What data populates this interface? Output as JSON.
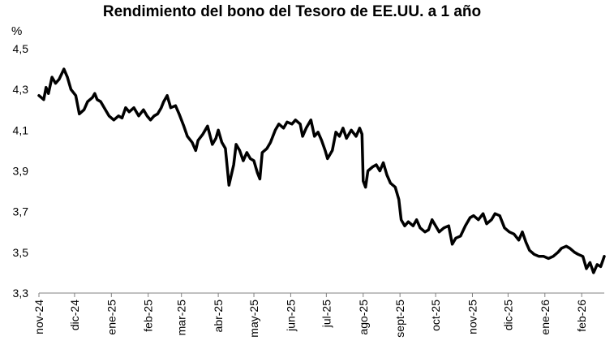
{
  "chart_data": {
    "type": "line",
    "title": "Rendimiento del bono del Tesoro de EE.UU. a 1 año",
    "ylabel": "%",
    "xlabel": "",
    "ylim": [
      3.3,
      4.5
    ],
    "yticks": [
      "4,5",
      "4,3",
      "4,1",
      "3,9",
      "3,7",
      "3,5",
      "3,3"
    ],
    "ytick_values": [
      4.5,
      4.3,
      4.1,
      3.9,
      3.7,
      3.5,
      3.3
    ],
    "xticks": [
      "nov-24",
      "dic-24",
      "ene-25",
      "feb-25",
      "mar-25",
      "abr-25",
      "may-25",
      "jun-25",
      "jul-25",
      "ago-25",
      "sept-25",
      "oct-25",
      "nov-25",
      "dic-25",
      "ene-26",
      "feb-26"
    ],
    "x_start": "2024-11-01",
    "x_end": "2026-02-20",
    "grid": false,
    "line_color": "#000000",
    "series": [
      {
        "points": [
          [
            "2024-11-01",
            4.27
          ],
          [
            "2024-11-05",
            4.25
          ],
          [
            "2024-11-07",
            4.31
          ],
          [
            "2024-11-09",
            4.28
          ],
          [
            "2024-11-12",
            4.36
          ],
          [
            "2024-11-15",
            4.33
          ],
          [
            "2024-11-18",
            4.35
          ],
          [
            "2024-11-22",
            4.4
          ],
          [
            "2024-11-25",
            4.36
          ],
          [
            "2024-11-28",
            4.3
          ],
          [
            "2024-12-02",
            4.27
          ],
          [
            "2024-12-05",
            4.18
          ],
          [
            "2024-12-09",
            4.2
          ],
          [
            "2024-12-12",
            4.24
          ],
          [
            "2024-12-16",
            4.26
          ],
          [
            "2024-12-18",
            4.28
          ],
          [
            "2024-12-20",
            4.25
          ],
          [
            "2024-12-23",
            4.24
          ],
          [
            "2024-12-26",
            4.21
          ],
          [
            "2024-12-30",
            4.17
          ],
          [
            "2025-01-03",
            4.15
          ],
          [
            "2025-01-07",
            4.17
          ],
          [
            "2025-01-10",
            4.16
          ],
          [
            "2025-01-13",
            4.21
          ],
          [
            "2025-01-16",
            4.19
          ],
          [
            "2025-01-20",
            4.21
          ],
          [
            "2025-01-24",
            4.17
          ],
          [
            "2025-01-28",
            4.2
          ],
          [
            "2025-01-31",
            4.17
          ],
          [
            "2025-02-03",
            4.15
          ],
          [
            "2025-02-06",
            4.17
          ],
          [
            "2025-02-09",
            4.18
          ],
          [
            "2025-02-12",
            4.21
          ],
          [
            "2025-02-14",
            4.24
          ],
          [
            "2025-02-17",
            4.27
          ],
          [
            "2025-02-20",
            4.21
          ],
          [
            "2025-02-24",
            4.22
          ],
          [
            "2025-02-27",
            4.18
          ],
          [
            "2025-03-03",
            4.12
          ],
          [
            "2025-03-06",
            4.07
          ],
          [
            "2025-03-10",
            4.04
          ],
          [
            "2025-03-13",
            4.0
          ],
          [
            "2025-03-15",
            4.05
          ],
          [
            "2025-03-19",
            4.08
          ],
          [
            "2025-03-23",
            4.12
          ],
          [
            "2025-03-27",
            4.03
          ],
          [
            "2025-03-30",
            4.06
          ],
          [
            "2025-04-01",
            4.1
          ],
          [
            "2025-04-04",
            4.04
          ],
          [
            "2025-04-07",
            4.01
          ],
          [
            "2025-04-10",
            3.83
          ],
          [
            "2025-04-14",
            3.93
          ],
          [
            "2025-04-16",
            4.03
          ],
          [
            "2025-04-19",
            4.0
          ],
          [
            "2025-04-22",
            3.95
          ],
          [
            "2025-04-25",
            3.99
          ],
          [
            "2025-04-28",
            3.96
          ],
          [
            "2025-05-01",
            3.95
          ],
          [
            "2025-05-04",
            3.89
          ],
          [
            "2025-05-06",
            3.86
          ],
          [
            "2025-05-08",
            3.99
          ],
          [
            "2025-05-12",
            4.01
          ],
          [
            "2025-05-15",
            4.04
          ],
          [
            "2025-05-19",
            4.1
          ],
          [
            "2025-05-22",
            4.13
          ],
          [
            "2025-05-26",
            4.11
          ],
          [
            "2025-05-29",
            4.14
          ],
          [
            "2025-06-02",
            4.13
          ],
          [
            "2025-06-05",
            4.15
          ],
          [
            "2025-06-09",
            4.13
          ],
          [
            "2025-06-11",
            4.07
          ],
          [
            "2025-06-14",
            4.11
          ],
          [
            "2025-06-18",
            4.15
          ],
          [
            "2025-06-21",
            4.07
          ],
          [
            "2025-06-24",
            4.09
          ],
          [
            "2025-06-27",
            4.05
          ],
          [
            "2025-06-30",
            4.0
          ],
          [
            "2025-07-02",
            3.96
          ],
          [
            "2025-07-06",
            4.0
          ],
          [
            "2025-07-09",
            4.09
          ],
          [
            "2025-07-12",
            4.07
          ],
          [
            "2025-07-15",
            4.11
          ],
          [
            "2025-07-18",
            4.06
          ],
          [
            "2025-07-22",
            4.1
          ],
          [
            "2025-07-26",
            4.07
          ],
          [
            "2025-07-29",
            4.11
          ],
          [
            "2025-07-31",
            4.08
          ],
          [
            "2025-08-01",
            3.85
          ],
          [
            "2025-08-03",
            3.82
          ],
          [
            "2025-08-05",
            3.9
          ],
          [
            "2025-08-09",
            3.92
          ],
          [
            "2025-08-12",
            3.93
          ],
          [
            "2025-08-15",
            3.9
          ],
          [
            "2025-08-18",
            3.94
          ],
          [
            "2025-08-21",
            3.88
          ],
          [
            "2025-08-24",
            3.84
          ],
          [
            "2025-08-28",
            3.82
          ],
          [
            "2025-08-31",
            3.76
          ],
          [
            "2025-09-02",
            3.66
          ],
          [
            "2025-09-05",
            3.63
          ],
          [
            "2025-09-08",
            3.65
          ],
          [
            "2025-09-12",
            3.63
          ],
          [
            "2025-09-15",
            3.66
          ],
          [
            "2025-09-18",
            3.62
          ],
          [
            "2025-09-22",
            3.6
          ],
          [
            "2025-09-25",
            3.61
          ],
          [
            "2025-09-28",
            3.66
          ],
          [
            "2025-10-01",
            3.63
          ],
          [
            "2025-10-04",
            3.6
          ],
          [
            "2025-10-08",
            3.62
          ],
          [
            "2025-10-12",
            3.63
          ],
          [
            "2025-10-15",
            3.54
          ],
          [
            "2025-10-18",
            3.57
          ],
          [
            "2025-10-22",
            3.58
          ],
          [
            "2025-10-26",
            3.63
          ],
          [
            "2025-10-30",
            3.67
          ],
          [
            "2025-11-02",
            3.68
          ],
          [
            "2025-11-06",
            3.66
          ],
          [
            "2025-11-10",
            3.69
          ],
          [
            "2025-11-13",
            3.64
          ],
          [
            "2025-11-17",
            3.66
          ],
          [
            "2025-11-20",
            3.69
          ],
          [
            "2025-11-24",
            3.68
          ],
          [
            "2025-11-28",
            3.62
          ],
          [
            "2025-12-02",
            3.6
          ],
          [
            "2025-12-06",
            3.59
          ],
          [
            "2025-12-10",
            3.56
          ],
          [
            "2025-12-13",
            3.6
          ],
          [
            "2025-12-16",
            3.55
          ],
          [
            "2025-12-19",
            3.51
          ],
          [
            "2025-12-23",
            3.49
          ],
          [
            "2025-12-27",
            3.48
          ],
          [
            "2025-12-31",
            3.48
          ],
          [
            "2026-01-04",
            3.47
          ],
          [
            "2026-01-08",
            3.48
          ],
          [
            "2026-01-12",
            3.5
          ],
          [
            "2026-01-15",
            3.52
          ],
          [
            "2026-01-19",
            3.53
          ],
          [
            "2026-01-22",
            3.52
          ],
          [
            "2026-01-26",
            3.5
          ],
          [
            "2026-01-29",
            3.49
          ],
          [
            "2026-02-02",
            3.48
          ],
          [
            "2026-02-05",
            3.42
          ],
          [
            "2026-02-08",
            3.45
          ],
          [
            "2026-02-11",
            3.4
          ],
          [
            "2026-02-14",
            3.44
          ],
          [
            "2026-02-17",
            3.43
          ],
          [
            "2026-02-20",
            3.48
          ]
        ]
      }
    ]
  }
}
